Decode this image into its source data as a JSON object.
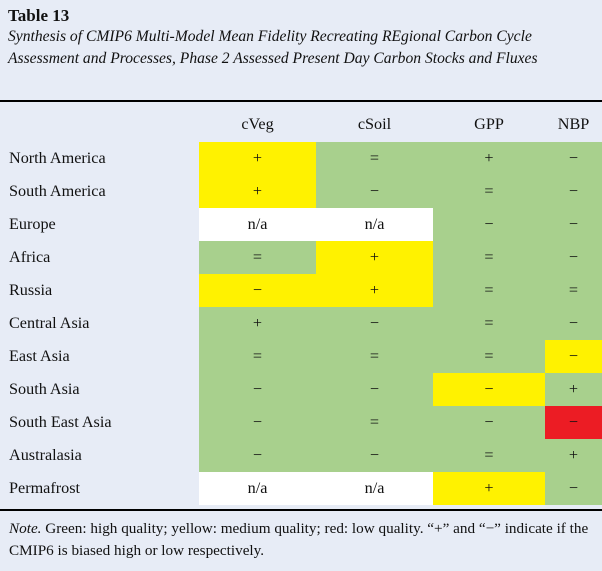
{
  "title": "Table 13",
  "caption": "Synthesis of CMIP6 Multi-Model Mean Fidelity Recreating REgional Carbon Cycle Assessment and Processes, Phase 2 Assessed Present Day Carbon Stocks and Fluxes",
  "columns": [
    "",
    "cVeg",
    "cSoil",
    "GPP",
    "NBP"
  ],
  "rows": [
    {
      "region": "North America",
      "cells": [
        {
          "value": "+",
          "quality": "y"
        },
        {
          "value": "=",
          "quality": "g"
        },
        {
          "value": "+",
          "quality": "g"
        },
        {
          "value": "−",
          "quality": "g"
        }
      ]
    },
    {
      "region": "South America",
      "cells": [
        {
          "value": "+",
          "quality": "y"
        },
        {
          "value": "−",
          "quality": "g"
        },
        {
          "value": "=",
          "quality": "g"
        },
        {
          "value": "−",
          "quality": "g"
        }
      ]
    },
    {
      "region": "Europe",
      "cells": [
        {
          "value": "n/a",
          "quality": "w"
        },
        {
          "value": "n/a",
          "quality": "w"
        },
        {
          "value": "−",
          "quality": "g"
        },
        {
          "value": "−",
          "quality": "g"
        }
      ]
    },
    {
      "region": "Africa",
      "cells": [
        {
          "value": "=",
          "quality": "g"
        },
        {
          "value": "+",
          "quality": "y"
        },
        {
          "value": "=",
          "quality": "g"
        },
        {
          "value": "−",
          "quality": "g"
        }
      ]
    },
    {
      "region": "Russia",
      "cells": [
        {
          "value": "−",
          "quality": "y"
        },
        {
          "value": "+",
          "quality": "y"
        },
        {
          "value": "=",
          "quality": "g"
        },
        {
          "value": "=",
          "quality": "g"
        }
      ]
    },
    {
      "region": "Central Asia",
      "cells": [
        {
          "value": "+",
          "quality": "g"
        },
        {
          "value": "−",
          "quality": "g"
        },
        {
          "value": "=",
          "quality": "g"
        },
        {
          "value": "−",
          "quality": "g"
        }
      ]
    },
    {
      "region": "East Asia",
      "cells": [
        {
          "value": "=",
          "quality": "g"
        },
        {
          "value": "=",
          "quality": "g"
        },
        {
          "value": "=",
          "quality": "g"
        },
        {
          "value": "−",
          "quality": "y"
        }
      ]
    },
    {
      "region": "South Asia",
      "cells": [
        {
          "value": "−",
          "quality": "g"
        },
        {
          "value": "−",
          "quality": "g"
        },
        {
          "value": "−",
          "quality": "y"
        },
        {
          "value": "+",
          "quality": "g"
        }
      ]
    },
    {
      "region": "South East Asia",
      "cells": [
        {
          "value": "−",
          "quality": "g"
        },
        {
          "value": "=",
          "quality": "g"
        },
        {
          "value": "−",
          "quality": "g"
        },
        {
          "value": "−",
          "quality": "r"
        }
      ]
    },
    {
      "region": "Australasia",
      "cells": [
        {
          "value": "−",
          "quality": "g"
        },
        {
          "value": "−",
          "quality": "g"
        },
        {
          "value": "=",
          "quality": "g"
        },
        {
          "value": "+",
          "quality": "g"
        }
      ]
    },
    {
      "region": "Permafrost",
      "cells": [
        {
          "value": "n/a",
          "quality": "w"
        },
        {
          "value": "n/a",
          "quality": "w"
        },
        {
          "value": "+",
          "quality": "y"
        },
        {
          "value": "−",
          "quality": "g"
        }
      ]
    }
  ],
  "note": {
    "label": "Note.",
    "text": " Green: high quality; yellow: medium quality; red: low quality. “+” and “−” indicate if the CMIP6 is biased high or low respectively."
  },
  "colors": {
    "background": "#e7ecf6",
    "green": "#a8d08d",
    "yellow": "#fff200",
    "red": "#ec1c24",
    "white": "#ffffff"
  }
}
